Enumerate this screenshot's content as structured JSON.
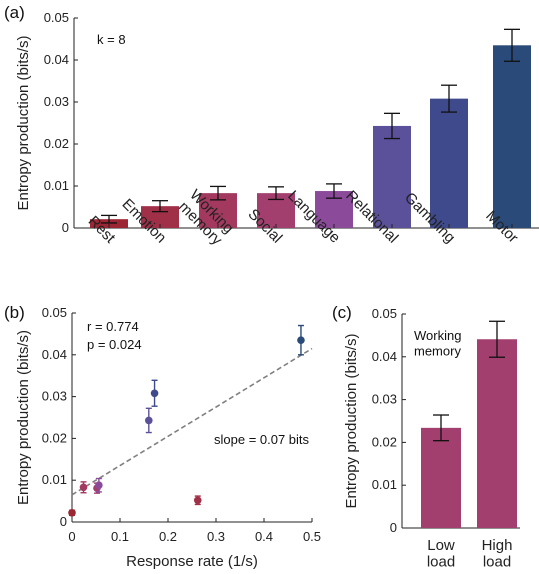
{
  "chart_data": [
    {
      "panel": "(a)",
      "type": "bar",
      "ylabel": "Entropy production (bits/s)",
      "ylim": [
        0,
        0.05
      ],
      "yticks": [
        0,
        0.01,
        0.02,
        0.03,
        0.04,
        0.05
      ],
      "ytick_labels": [
        "0",
        "0.01",
        "0.02",
        "0.03",
        "0.04",
        "0.05"
      ],
      "annotation": "k = 8",
      "categories": [
        "Rest",
        "Emotion",
        "Working memory",
        "Social",
        "Language",
        "Relational",
        "Gambling",
        "Motor"
      ],
      "category_lines": [
        [
          "Rest"
        ],
        [
          "Emotion"
        ],
        [
          "Working",
          "memory"
        ],
        [
          "Social"
        ],
        [
          "Language"
        ],
        [
          "Relational"
        ],
        [
          "Gambling"
        ],
        [
          "Motor"
        ]
      ],
      "values": [
        0.0021,
        0.0052,
        0.0083,
        0.0083,
        0.0088,
        0.0243,
        0.0308,
        0.0435
      ],
      "errors": [
        0.0009,
        0.0013,
        0.0016,
        0.0015,
        0.0017,
        0.003,
        0.0032,
        0.0038
      ],
      "colors": [
        "#9c2634",
        "#a02f48",
        "#a3395e",
        "#a23f6e",
        "#8c4b9a",
        "#5b519a",
        "#3e4a8c",
        "#2a4a79"
      ]
    },
    {
      "panel": "(b)",
      "type": "scatter",
      "xlabel": "Response rate (1/s)",
      "ylabel": "Entropy production (bits/s)",
      "xlim": [
        0,
        0.5
      ],
      "ylim": [
        0,
        0.05
      ],
      "xticks": [
        0,
        0.1,
        0.2,
        0.3,
        0.4,
        0.5
      ],
      "xtick_labels": [
        "0",
        "0.1",
        "0.2",
        "0.3",
        "0.4",
        "0.5"
      ],
      "yticks": [
        0,
        0.01,
        0.02,
        0.03,
        0.04,
        0.05
      ],
      "ytick_labels": [
        "0",
        "0.01",
        "0.02",
        "0.03",
        "0.04",
        "0.05"
      ],
      "annotations": [
        "r = 0.774",
        "p = 0.024"
      ],
      "fit_label": "slope = 0.07 bits",
      "fit": {
        "slope": 0.07,
        "intercept": 0.0065
      },
      "points": [
        {
          "x": 0.0,
          "y": 0.0022,
          "err": 0.0006,
          "color": "#9c2634"
        },
        {
          "x": 0.262,
          "y": 0.0052,
          "err": 0.001,
          "color": "#a02f48"
        },
        {
          "x": 0.024,
          "y": 0.0083,
          "err": 0.0013,
          "color": "#a3395e"
        },
        {
          "x": 0.052,
          "y": 0.0081,
          "err": 0.0012,
          "color": "#a23f6e"
        },
        {
          "x": 0.056,
          "y": 0.0088,
          "err": 0.0016,
          "color": "#8c4b9a"
        },
        {
          "x": 0.16,
          "y": 0.0243,
          "err": 0.0029,
          "color": "#5b519a"
        },
        {
          "x": 0.172,
          "y": 0.0308,
          "err": 0.0031,
          "color": "#3e4a8c"
        },
        {
          "x": 0.477,
          "y": 0.0435,
          "err": 0.0035,
          "color": "#2a4a79"
        }
      ]
    },
    {
      "panel": "(c)",
      "type": "bar",
      "ylabel": "Entropy production (bits/s)",
      "ylim": [
        0,
        0.05
      ],
      "yticks": [
        0,
        0.01,
        0.02,
        0.03,
        0.04,
        0.05
      ],
      "ytick_labels": [
        "0",
        "0.01",
        "0.02",
        "0.03",
        "0.04",
        "0.05"
      ],
      "annotation": "Working memory",
      "annotation_lines": [
        "Working",
        "memory"
      ],
      "categories": [
        "Low load",
        "High load"
      ],
      "category_lines": [
        [
          "Low",
          "load"
        ],
        [
          "High",
          "load"
        ]
      ],
      "values": [
        0.0234,
        0.0441
      ],
      "errors": [
        0.003,
        0.0042
      ],
      "colors": [
        "#a23f6e",
        "#a23f6e"
      ]
    }
  ]
}
